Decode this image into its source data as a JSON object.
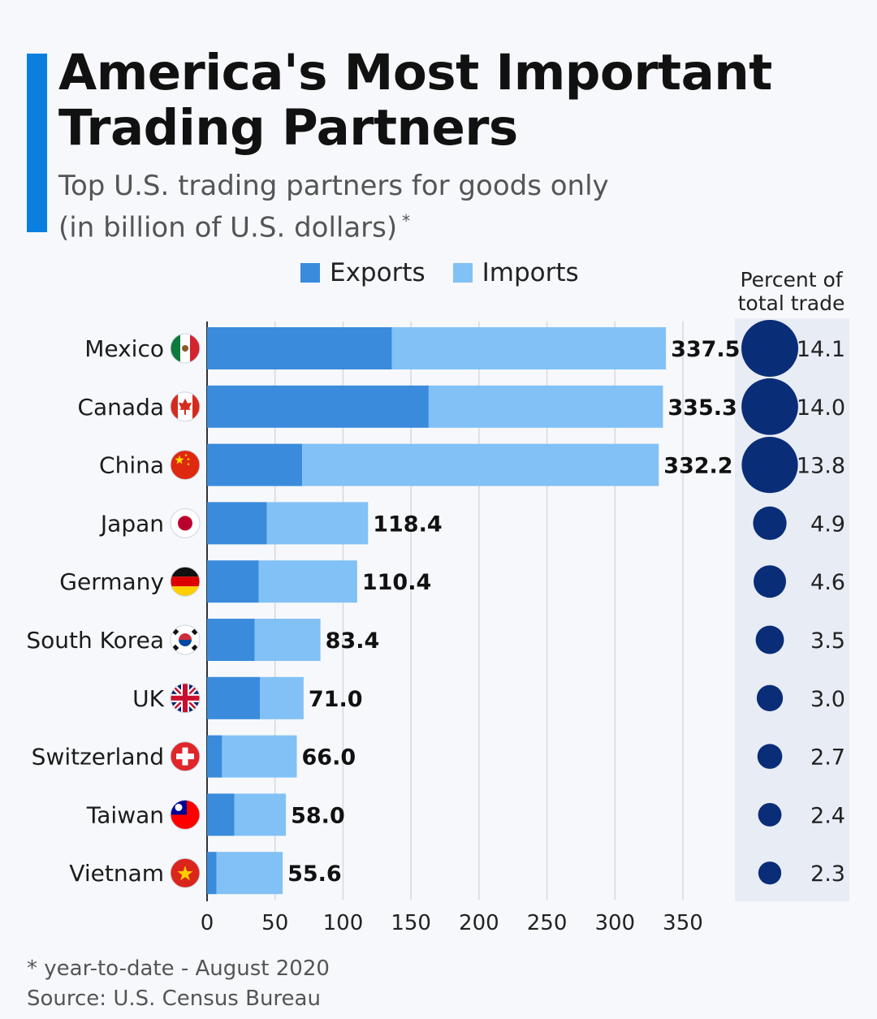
{
  "title_line1": "America's Most Important",
  "title_line2": "Trading Partners",
  "subtitle_line1": "Top U.S. trading partners for goods only",
  "subtitle_line2": "(in billion of U.S. dollars)",
  "subtitle_asterisk": "*",
  "legend": {
    "exports": "Exports",
    "imports": "Imports"
  },
  "pct_header_line1": "Percent of",
  "pct_header_line2": "total trade",
  "footnote": "* year-to-date - August 2020",
  "source": "Source: U.S. Census Bureau",
  "colors": {
    "exports": "#3a8bdc",
    "imports": "#82c1f5",
    "bubble": "#0a2d78",
    "accent": "#0a7fe0"
  },
  "chart_data": {
    "type": "bar",
    "orientation": "horizontal",
    "stacked": true,
    "categories": [
      "Mexico",
      "Canada",
      "China",
      "Japan",
      "Germany",
      "South Korea",
      "UK",
      "Switzerland",
      "Taiwan",
      "Vietnam"
    ],
    "flag_icons": [
      "mexico-flag-icon",
      "canada-flag-icon",
      "china-flag-icon",
      "japan-flag-icon",
      "germany-flag-icon",
      "south-korea-flag-icon",
      "uk-flag-icon",
      "switzerland-flag-icon",
      "taiwan-flag-icon",
      "vietnam-flag-icon"
    ],
    "series": [
      {
        "name": "Exports",
        "values": [
          136,
          163,
          70,
          44,
          38,
          35,
          39,
          11,
          20,
          7
        ]
      },
      {
        "name": "Imports",
        "values": [
          201.5,
          172.3,
          262.2,
          74.4,
          72.4,
          48.4,
          32.0,
          55.0,
          38.0,
          48.6
        ]
      }
    ],
    "totals": [
      "337.5",
      "335.3",
      "332.2",
      "118.4",
      "110.4",
      "83.4",
      "71.0",
      "66.0",
      "58.0",
      "55.6"
    ],
    "percent_of_total_trade": [
      "14.1",
      "14.0",
      "13.8",
      "4.9",
      "4.6",
      "3.5",
      "3.0",
      "2.7",
      "2.4",
      "2.3"
    ],
    "xlim": [
      0,
      350
    ],
    "xticks": [
      "0",
      "50",
      "100",
      "150",
      "200",
      "250",
      "300",
      "350"
    ],
    "grid": true,
    "legend_position": "top"
  }
}
